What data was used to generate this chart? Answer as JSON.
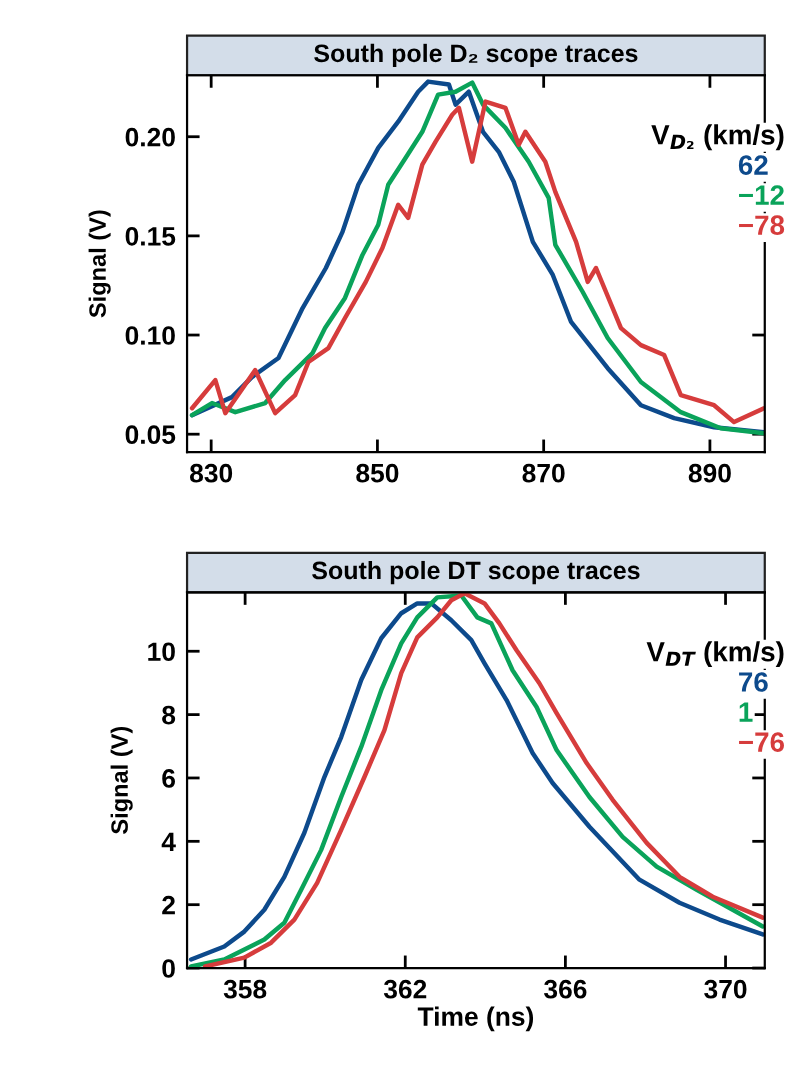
{
  "chart_data": [
    {
      "type": "line",
      "title": "South pole D₂ scope traces",
      "ylabel": "Signal (V)",
      "legend_title": "V$_{D₂}$ (km/s)",
      "legend": "top right",
      "xlim": [
        827.1,
        896.6
      ],
      "xticks": [
        830,
        850,
        870,
        890
      ],
      "ylim": [
        0.041,
        0.231
      ],
      "yticks": [
        {
          "value": 0.05,
          "label": "0.05"
        },
        {
          "value": 0.1,
          "label": "0.10"
        },
        {
          "value": 0.15,
          "label": "0.15"
        },
        {
          "value": 0.2,
          "label": "0.20"
        }
      ],
      "grid": false,
      "marker": "none",
      "line_style": "solid",
      "series": [
        {
          "name": "62",
          "color": "#0d4a8c",
          "x": [
            827.7,
            832.5,
            834.9,
            838.1,
            841.0,
            843.8,
            845.8,
            847.7,
            850.1,
            852.5,
            854.9,
            856.1,
            858.6,
            859.4,
            861.0,
            862.7,
            864.6,
            866.4,
            868.7,
            871.1,
            873.3,
            877.7,
            881.7,
            885.7,
            890.5,
            896.5
          ],
          "values": [
            0.0596,
            0.0687,
            0.0788,
            0.0884,
            0.1136,
            0.1338,
            0.152,
            0.1758,
            0.1944,
            0.2076,
            0.2227,
            0.2278,
            0.2263,
            0.2162,
            0.2227,
            0.2025,
            0.1924,
            0.1773,
            0.147,
            0.1303,
            0.1066,
            0.0833,
            0.0646,
            0.0581,
            0.0535,
            0.051
          ]
        },
        {
          "name": "−12",
          "color": "#0aa35a",
          "x": [
            827.7,
            830.1,
            832.9,
            836.5,
            838.9,
            842.2,
            843.7,
            846.1,
            848.2,
            850.1,
            851.3,
            853.4,
            855.4,
            857.3,
            859.4,
            861.4,
            862.7,
            865.4,
            868.2,
            870.6,
            871.4,
            874.7,
            877.7,
            881.7,
            886.5,
            891.3,
            896.5
          ],
          "values": [
            0.0596,
            0.0657,
            0.0611,
            0.0657,
            0.0773,
            0.0909,
            0.1035,
            0.1187,
            0.1404,
            0.1556,
            0.1758,
            0.1894,
            0.2025,
            0.2212,
            0.2227,
            0.2273,
            0.2162,
            0.2045,
            0.1874,
            0.1692,
            0.1455,
            0.1217,
            0.0985,
            0.0763,
            0.0611,
            0.053,
            0.0505
          ]
        },
        {
          "name": "−78",
          "color": "#d63c3c",
          "x": [
            827.7,
            830.5,
            831.7,
            835.3,
            837.7,
            840.1,
            841.7,
            844.1,
            846.1,
            848.6,
            850.6,
            852.5,
            853.7,
            855.4,
            857.0,
            859.0,
            859.8,
            861.4,
            863.0,
            865.4,
            867.0,
            867.8,
            870.2,
            871.4,
            873.9,
            875.3,
            876.3,
            879.3,
            881.7,
            884.5,
            886.5,
            890.5,
            892.9,
            896.5
          ],
          "values": [
            0.0631,
            0.0773,
            0.0606,
            0.0823,
            0.0606,
            0.0697,
            0.0864,
            0.0934,
            0.1086,
            0.1268,
            0.1439,
            0.1657,
            0.1591,
            0.1859,
            0.1975,
            0.2111,
            0.2146,
            0.1874,
            0.2177,
            0.2146,
            0.196,
            0.2025,
            0.1874,
            0.1722,
            0.147,
            0.1268,
            0.1338,
            0.1035,
            0.0949,
            0.0899,
            0.0697,
            0.0646,
            0.0561,
            0.0631
          ]
        }
      ]
    },
    {
      "type": "line",
      "title": "South pole DT scope traces",
      "xlabel": "Time (ns)",
      "ylabel": "Signal (V)",
      "legend_title": "V$_{DT}$ (km/s)",
      "legend": "top right",
      "xlim": [
        356.55,
        370.98
      ],
      "xticks": [
        358,
        362,
        366,
        370
      ],
      "ylim": [
        0,
        11.86
      ],
      "yticks": [
        0,
        2,
        4,
        6,
        8,
        10
      ],
      "grid": false,
      "marker": "none",
      "line_style": "solid",
      "series": [
        {
          "name": "76",
          "color": "#0d4a8c",
          "x": [
            356.65,
            357.48,
            357.98,
            358.48,
            358.98,
            359.48,
            359.98,
            360.4,
            360.9,
            361.4,
            361.9,
            362.3,
            362.65,
            363.15,
            363.65,
            363.98,
            364.53,
            365.18,
            365.68,
            366.6,
            367.85,
            368.85,
            369.85,
            370.93
          ],
          "values": [
            0.27,
            0.68,
            1.15,
            1.84,
            2.88,
            4.27,
            6.03,
            7.29,
            9.09,
            10.41,
            11.2,
            11.51,
            11.51,
            10.98,
            10.35,
            9.62,
            8.46,
            6.79,
            5.84,
            4.46,
            2.79,
            2.06,
            1.53,
            1.06
          ]
        },
        {
          "name": "1",
          "color": "#0aa35a",
          "x": [
            356.65,
            357.48,
            358.48,
            358.98,
            359.4,
            359.9,
            360.4,
            360.9,
            361.4,
            361.9,
            362.3,
            362.8,
            363.4,
            363.8,
            364.15,
            364.68,
            365.28,
            365.78,
            366.6,
            367.43,
            368.28,
            369.28,
            370.93
          ],
          "values": [
            0.05,
            0.27,
            0.9,
            1.43,
            2.47,
            3.73,
            5.4,
            6.98,
            8.77,
            10.25,
            11.07,
            11.7,
            11.76,
            11.07,
            10.88,
            9.4,
            8.24,
            6.88,
            5.4,
            4.14,
            3.2,
            2.47,
            1.31
          ]
        },
        {
          "name": "−76",
          "color": "#d63c3c",
          "x": [
            357.0,
            357.98,
            358.65,
            359.23,
            359.8,
            360.4,
            360.98,
            361.48,
            361.9,
            362.3,
            362.8,
            363.15,
            363.48,
            363.98,
            364.35,
            364.78,
            365.35,
            365.78,
            366.53,
            367.18,
            368.03,
            368.85,
            369.68,
            370.93
          ],
          "values": [
            0.05,
            0.33,
            0.8,
            1.53,
            2.69,
            4.36,
            6.03,
            7.51,
            9.31,
            10.44,
            11.07,
            11.61,
            11.83,
            11.51,
            10.88,
            10.03,
            8.99,
            8.05,
            6.47,
            5.31,
            3.95,
            2.88,
            2.25,
            1.59
          ]
        }
      ]
    }
  ]
}
